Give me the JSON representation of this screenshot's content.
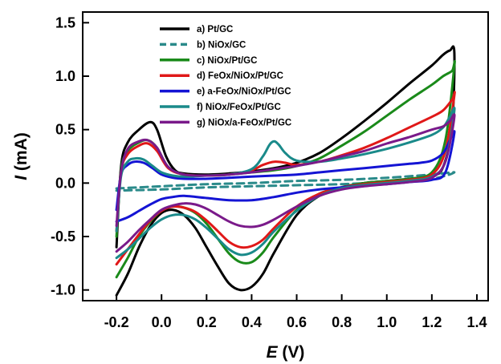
{
  "chart_data": {
    "type": "line",
    "xlabel_symbol": "E",
    "xlabel_unit": " (V)",
    "ylabel_symbol": "I",
    "ylabel_unit": " (mA)",
    "xlim": [
      -0.35,
      1.45
    ],
    "ylim": [
      -1.1,
      1.6
    ],
    "xticks": [
      -0.2,
      0.0,
      0.2,
      0.4,
      0.6,
      0.8,
      1.0,
      1.2,
      1.4
    ],
    "xtick_labels": [
      "-0.2",
      "0.0",
      "0.2",
      "0.4",
      "0.6",
      "0.8",
      "1.0",
      "1.2",
      "1.4"
    ],
    "yticks": [
      -1.0,
      -0.5,
      0.0,
      0.5,
      1.0,
      1.5
    ],
    "ytick_labels": [
      "-1.0",
      "-0.5",
      "0.0",
      "0.5",
      "1.0",
      "1.5"
    ],
    "grid": false,
    "legend_position": "top-center",
    "series": [
      {
        "name": "a) Pt/GC",
        "color": "#000000",
        "dashed": false,
        "x": [
          -0.2,
          -0.18,
          -0.15,
          -0.1,
          -0.05,
          -0.02,
          0.02,
          0.06,
          0.1,
          0.2,
          0.3,
          0.4,
          0.5,
          0.6,
          0.7,
          0.8,
          0.9,
          1.0,
          1.1,
          1.2,
          1.25,
          1.28,
          1.3,
          1.29,
          1.25,
          1.2,
          1.1,
          1.0,
          0.9,
          0.8,
          0.7,
          0.6,
          0.5,
          0.45,
          0.4,
          0.35,
          0.3,
          0.25,
          0.2,
          0.15,
          0.1,
          0.05,
          0.0,
          -0.05,
          -0.1,
          -0.15,
          -0.2
        ],
        "y": [
          -0.6,
          0.15,
          0.38,
          0.5,
          0.57,
          0.5,
          0.25,
          0.12,
          0.09,
          0.08,
          0.09,
          0.11,
          0.14,
          0.19,
          0.28,
          0.42,
          0.58,
          0.75,
          0.93,
          1.1,
          1.2,
          1.24,
          1.22,
          0.55,
          0.15,
          0.07,
          0.04,
          0.02,
          0.0,
          -0.04,
          -0.12,
          -0.3,
          -0.65,
          -0.85,
          -0.97,
          -1.0,
          -0.94,
          -0.78,
          -0.6,
          -0.42,
          -0.3,
          -0.25,
          -0.28,
          -0.4,
          -0.6,
          -0.85,
          -1.05
        ]
      },
      {
        "name": "b) NiOx/GC",
        "color": "#2a8a8a",
        "dashed": true,
        "x": [
          -0.2,
          0.0,
          0.2,
          0.4,
          0.6,
          0.8,
          1.0,
          1.2,
          1.3,
          1.2,
          1.0,
          0.8,
          0.6,
          0.4,
          0.2,
          0.0,
          -0.2
        ],
        "y": [
          -0.05,
          -0.03,
          -0.01,
          0.0,
          0.02,
          0.03,
          0.05,
          0.08,
          0.1,
          0.04,
          0.01,
          -0.01,
          -0.02,
          -0.03,
          -0.04,
          -0.06,
          -0.07
        ]
      },
      {
        "name": "c) NiOx/Pt/GC",
        "color": "#1a8a1a",
        "dashed": false,
        "x": [
          -0.2,
          -0.18,
          -0.15,
          -0.1,
          -0.06,
          -0.02,
          0.03,
          0.1,
          0.2,
          0.3,
          0.4,
          0.5,
          0.6,
          0.7,
          0.8,
          0.9,
          1.0,
          1.1,
          1.2,
          1.25,
          1.29,
          1.3,
          1.26,
          1.2,
          1.1,
          1.0,
          0.9,
          0.8,
          0.7,
          0.6,
          0.5,
          0.45,
          0.4,
          0.35,
          0.3,
          0.25,
          0.2,
          0.15,
          0.1,
          0.05,
          0.0,
          -0.05,
          -0.1,
          -0.15,
          -0.2
        ],
        "y": [
          -0.5,
          0.12,
          0.3,
          0.38,
          0.4,
          0.33,
          0.15,
          0.08,
          0.07,
          0.08,
          0.1,
          0.12,
          0.16,
          0.23,
          0.35,
          0.48,
          0.63,
          0.78,
          0.92,
          1.0,
          1.05,
          1.1,
          0.4,
          0.1,
          0.04,
          0.02,
          0.0,
          -0.04,
          -0.1,
          -0.25,
          -0.5,
          -0.65,
          -0.74,
          -0.74,
          -0.66,
          -0.52,
          -0.38,
          -0.28,
          -0.23,
          -0.22,
          -0.26,
          -0.36,
          -0.5,
          -0.7,
          -0.88
        ]
      },
      {
        "name": "d) FeOx/NiOx/Pt/GC",
        "color": "#e01818",
        "dashed": false,
        "x": [
          -0.2,
          -0.18,
          -0.15,
          -0.1,
          -0.06,
          -0.02,
          0.03,
          0.1,
          0.2,
          0.3,
          0.4,
          0.45,
          0.5,
          0.55,
          0.6,
          0.7,
          0.8,
          0.9,
          1.0,
          1.1,
          1.2,
          1.25,
          1.29,
          1.3,
          1.26,
          1.2,
          1.1,
          1.0,
          0.9,
          0.8,
          0.7,
          0.6,
          0.5,
          0.45,
          0.4,
          0.35,
          0.3,
          0.25,
          0.2,
          0.15,
          0.1,
          0.05,
          0.0,
          -0.05,
          -0.1,
          -0.15,
          -0.2
        ],
        "y": [
          -0.45,
          0.1,
          0.27,
          0.35,
          0.37,
          0.3,
          0.14,
          0.08,
          0.07,
          0.08,
          0.12,
          0.17,
          0.2,
          0.19,
          0.17,
          0.2,
          0.26,
          0.33,
          0.42,
          0.52,
          0.62,
          0.68,
          0.78,
          0.82,
          0.3,
          0.08,
          0.03,
          0.01,
          -0.01,
          -0.04,
          -0.1,
          -0.22,
          -0.42,
          -0.53,
          -0.59,
          -0.6,
          -0.55,
          -0.45,
          -0.35,
          -0.27,
          -0.23,
          -0.22,
          -0.26,
          -0.35,
          -0.48,
          -0.62,
          -0.76
        ]
      },
      {
        "name": "e) a-FeOx/NiOx/Pt/GC",
        "color": "#1414d4",
        "dashed": false,
        "x": [
          -0.2,
          -0.18,
          -0.15,
          -0.12,
          -0.08,
          -0.04,
          0.0,
          0.05,
          0.1,
          0.2,
          0.3,
          0.4,
          0.5,
          0.6,
          0.7,
          0.8,
          0.9,
          1.0,
          1.1,
          1.15,
          1.2,
          1.25,
          1.28,
          1.3,
          1.26,
          1.2,
          1.1,
          1.0,
          0.9,
          0.8,
          0.7,
          0.6,
          0.5,
          0.4,
          0.3,
          0.2,
          0.1,
          0.05,
          0.0,
          -0.05,
          -0.1,
          -0.15,
          -0.2
        ],
        "y": [
          -0.25,
          0.08,
          0.17,
          0.2,
          0.19,
          0.14,
          0.08,
          0.05,
          0.04,
          0.04,
          0.05,
          0.06,
          0.07,
          0.08,
          0.1,
          0.12,
          0.14,
          0.16,
          0.18,
          0.19,
          0.21,
          0.28,
          0.4,
          0.47,
          0.1,
          0.03,
          0.01,
          -0.01,
          -0.02,
          -0.04,
          -0.06,
          -0.09,
          -0.13,
          -0.16,
          -0.16,
          -0.14,
          -0.12,
          -0.13,
          -0.15,
          -0.2,
          -0.26,
          -0.32,
          -0.36
        ]
      },
      {
        "name": "f) NiOx/FeOx/Pt/GC",
        "color": "#1a8a8a",
        "dashed": false,
        "x": [
          -0.2,
          -0.18,
          -0.15,
          -0.12,
          -0.08,
          -0.04,
          0.0,
          0.05,
          0.1,
          0.2,
          0.3,
          0.4,
          0.45,
          0.48,
          0.5,
          0.52,
          0.55,
          0.6,
          0.7,
          0.8,
          0.9,
          1.0,
          1.1,
          1.2,
          1.25,
          1.28,
          1.3,
          1.26,
          1.2,
          1.1,
          1.0,
          0.9,
          0.8,
          0.7,
          0.6,
          0.5,
          0.45,
          0.4,
          0.35,
          0.3,
          0.25,
          0.2,
          0.15,
          0.1,
          0.05,
          0.0,
          -0.05,
          -0.1,
          -0.15,
          -0.2
        ],
        "y": [
          -0.45,
          0.06,
          0.2,
          0.23,
          0.22,
          0.16,
          0.1,
          0.07,
          0.06,
          0.07,
          0.08,
          0.13,
          0.25,
          0.36,
          0.39,
          0.36,
          0.28,
          0.21,
          0.2,
          0.23,
          0.27,
          0.32,
          0.38,
          0.45,
          0.52,
          0.62,
          0.68,
          0.2,
          0.06,
          0.02,
          0.0,
          -0.02,
          -0.05,
          -0.12,
          -0.26,
          -0.45,
          -0.57,
          -0.65,
          -0.67,
          -0.62,
          -0.52,
          -0.42,
          -0.34,
          -0.3,
          -0.3,
          -0.34,
          -0.42,
          -0.52,
          -0.62,
          -0.7
        ]
      },
      {
        "name": "g) NiOx/a-FeOx/Pt/GC",
        "color": "#7a1a8a",
        "dashed": false,
        "x": [
          -0.2,
          -0.18,
          -0.15,
          -0.1,
          -0.06,
          -0.02,
          0.03,
          0.1,
          0.2,
          0.3,
          0.4,
          0.5,
          0.6,
          0.7,
          0.8,
          0.9,
          1.0,
          1.1,
          1.2,
          1.25,
          1.28,
          1.3,
          1.26,
          1.2,
          1.1,
          1.0,
          0.9,
          0.8,
          0.7,
          0.6,
          0.5,
          0.45,
          0.4,
          0.35,
          0.3,
          0.25,
          0.2,
          0.15,
          0.1,
          0.05,
          0.0,
          -0.05,
          -0.1,
          -0.15,
          -0.2
        ],
        "y": [
          -0.4,
          0.1,
          0.32,
          0.39,
          0.4,
          0.33,
          0.15,
          0.08,
          0.07,
          0.08,
          0.1,
          0.13,
          0.16,
          0.2,
          0.25,
          0.3,
          0.37,
          0.43,
          0.5,
          0.53,
          0.58,
          0.62,
          0.2,
          0.05,
          0.01,
          -0.01,
          -0.03,
          -0.06,
          -0.12,
          -0.22,
          -0.34,
          -0.39,
          -0.41,
          -0.4,
          -0.36,
          -0.3,
          -0.24,
          -0.2,
          -0.19,
          -0.21,
          -0.25,
          -0.34,
          -0.44,
          -0.55,
          -0.64
        ]
      }
    ]
  }
}
